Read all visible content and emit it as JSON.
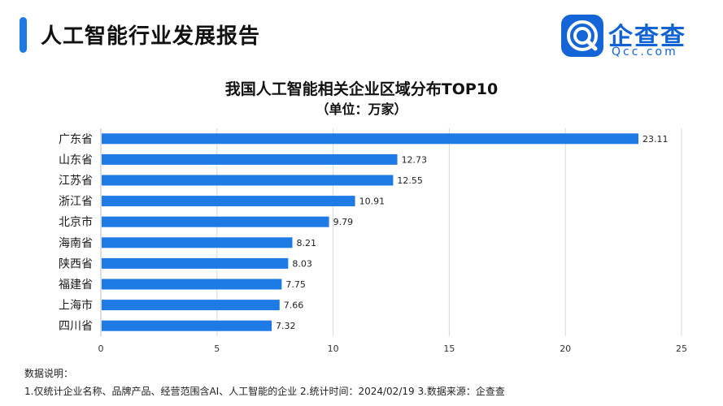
{
  "header": {
    "title": "人工智能行业发展报告",
    "accent_color": "#1e7be6"
  },
  "logo": {
    "name": "企查查",
    "sub": "Qcc.com",
    "icon": "qcc-logo-icon",
    "color": "#0f63d2"
  },
  "chart_data": {
    "type": "bar",
    "orientation": "horizontal",
    "title": "我国人工智能相关企业区域分布TOP10",
    "subtitle": "（单位：万家）",
    "categories": [
      "广东省",
      "山东省",
      "江苏省",
      "浙江省",
      "北京市",
      "海南省",
      "陕西省",
      "福建省",
      "上海市",
      "四川省"
    ],
    "values": [
      23.11,
      12.73,
      12.55,
      10.91,
      9.79,
      8.21,
      8.03,
      7.75,
      7.66,
      7.32
    ],
    "value_labels": [
      "23.11",
      "12.73",
      "12.55",
      "10.91",
      "9.79",
      "8.21",
      "8.03",
      "7.75",
      "7.66",
      "7.32"
    ],
    "xlim": [
      0,
      25
    ],
    "xticks": [
      "0",
      "5",
      "10",
      "15",
      "20",
      "25"
    ],
    "grid": true,
    "bar_color": "#1e7be6"
  },
  "notes": {
    "label": "数据说明：",
    "text": "1.仅统计企业名称、品牌产品、经营范围含AI、人工智能的企业   2.统计时间：2024/02/19   3.数据来源：企查查"
  }
}
